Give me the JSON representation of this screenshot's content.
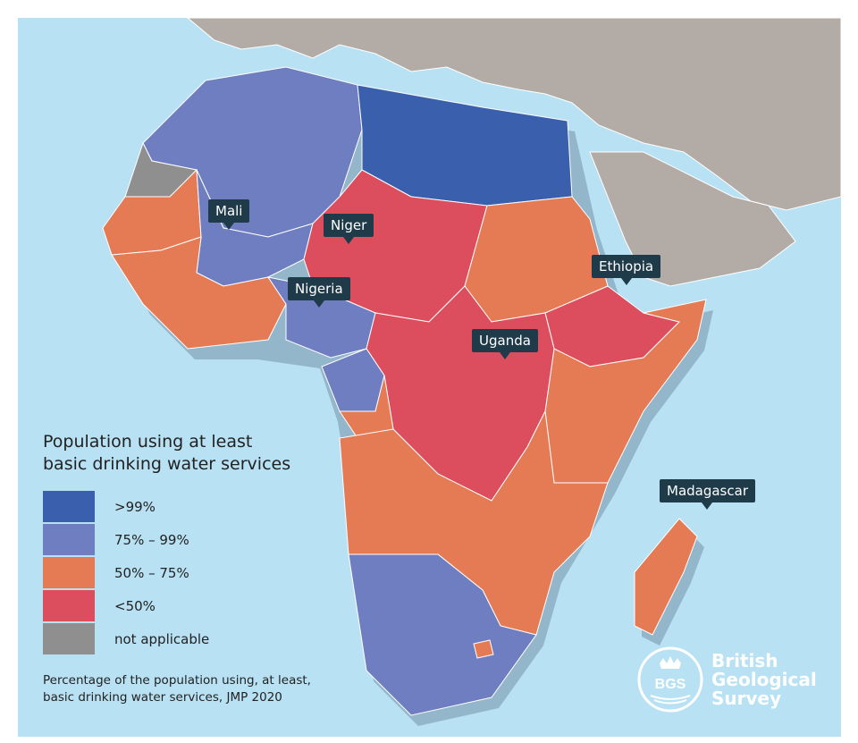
{
  "legend": {
    "title_line1": "Population using at least",
    "title_line2": "basic drinking water services",
    "items": [
      {
        "label": ">99%",
        "color": "#3a60ad"
      },
      {
        "label": "75% – 99%",
        "color": "#6f7ec0"
      },
      {
        "label": "50% – 75%",
        "color": "#e47b55"
      },
      {
        "label": "<50%",
        "color": "#dc4e5e"
      },
      {
        "label": "not applicable",
        "color": "#8f8f8f"
      }
    ]
  },
  "source_note": {
    "line1": "Percentage of the population using, at least,",
    "line2": "basic drinking water services, JMP 2020"
  },
  "callouts": {
    "mali": "Mali",
    "niger": "Niger",
    "nigeria": "Nigeria",
    "ethiopia": "Ethiopia",
    "uganda": "Uganda",
    "madagascar": "Madagascar"
  },
  "logo": {
    "mark": "BGS",
    "line1": "British",
    "line2": "Geological",
    "line3": "Survey"
  },
  "colors": {
    "sea": "#b8e1f3",
    "land_other": "#b3aca6",
    "callout_bg": "#1f3b4a"
  }
}
